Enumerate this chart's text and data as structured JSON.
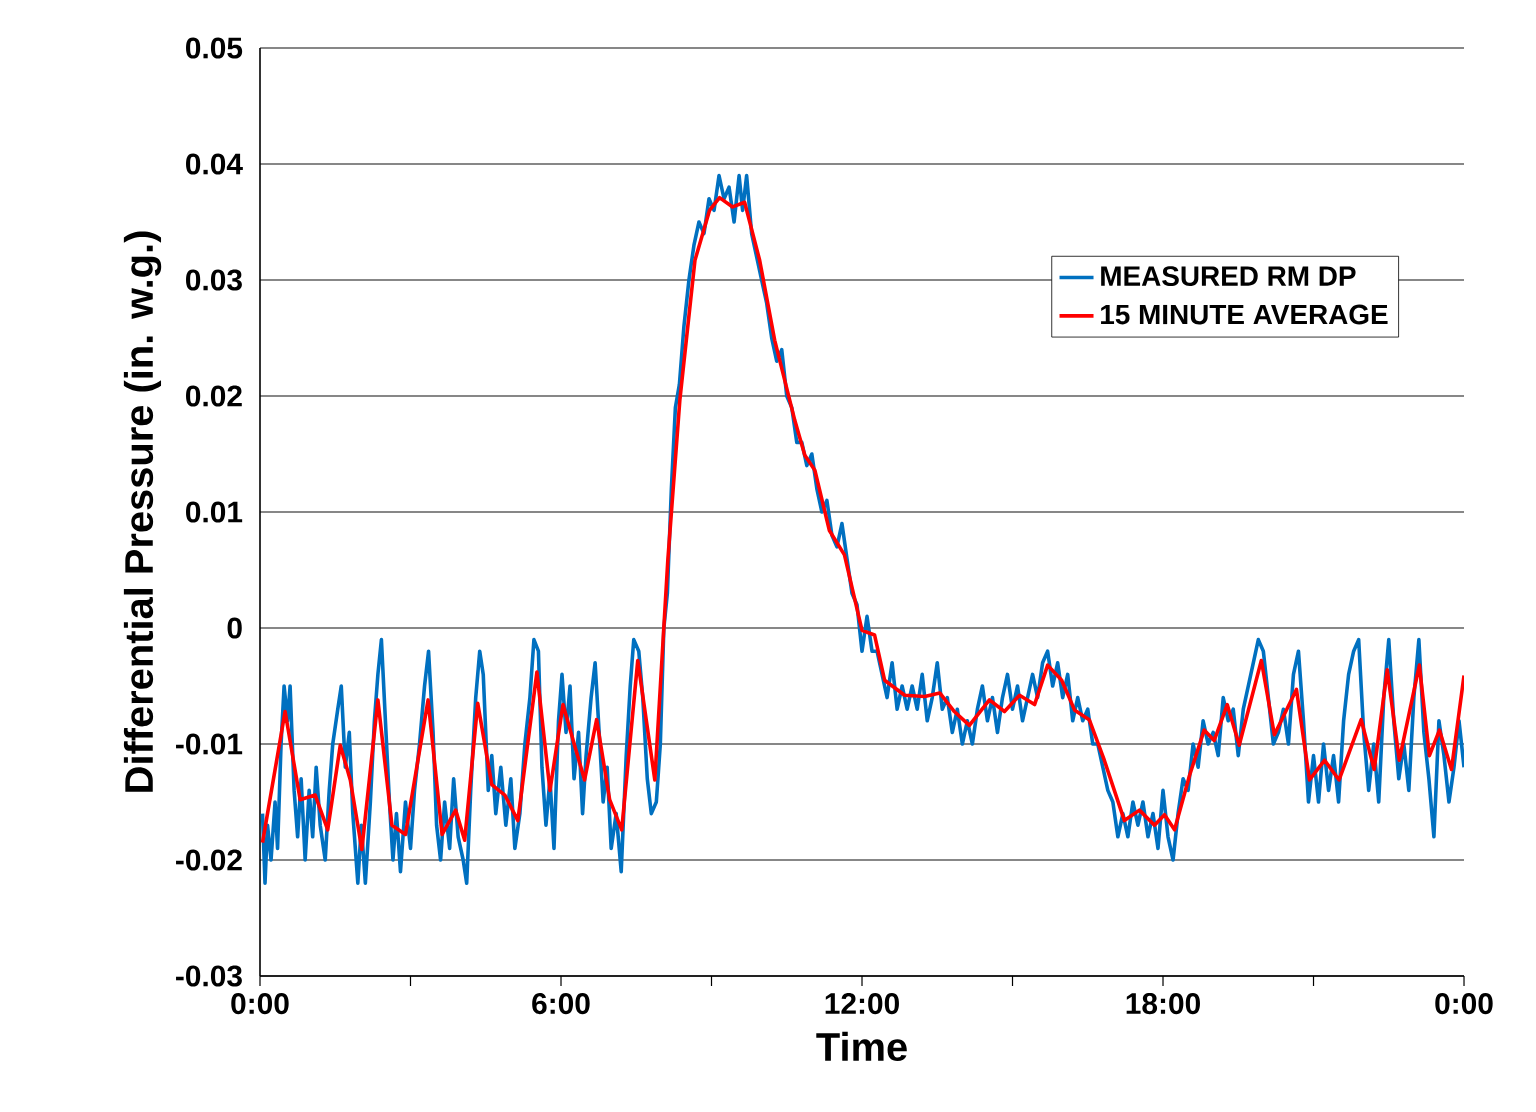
{
  "chart_data": {
    "type": "line",
    "xlabel": "Time",
    "ylabel": "Differential Pressure (in. w.g.)",
    "xlim": [
      0,
      24
    ],
    "xticks": [
      {
        "value": 0,
        "label": "0:00"
      },
      {
        "value": 3,
        "label": null
      },
      {
        "value": 6,
        "label": "6:00"
      },
      {
        "value": 9,
        "label": null
      },
      {
        "value": 12,
        "label": "12:00"
      },
      {
        "value": 15,
        "label": null
      },
      {
        "value": 18,
        "label": "18:00"
      },
      {
        "value": 21,
        "label": null
      },
      {
        "value": 24,
        "label": "0:00"
      }
    ],
    "ylim": [
      -0.03,
      0.05
    ],
    "yticks": [
      -0.03,
      -0.02,
      -0.01,
      0,
      0.01,
      0.02,
      0.03,
      0.04,
      0.05
    ],
    "grid": "y",
    "legend": "top right",
    "marker": "none",
    "line_style": "solid",
    "series": [
      {
        "name": "MEASURED RM DP",
        "color": "#0070c0",
        "x": [
          0.05,
          0.1,
          0.15,
          0.22,
          0.3,
          0.35,
          0.42,
          0.48,
          0.55,
          0.6,
          0.68,
          0.75,
          0.82,
          0.9,
          0.98,
          1.05,
          1.12,
          1.2,
          1.3,
          1.38,
          1.45,
          1.55,
          1.62,
          1.7,
          1.78,
          1.85,
          1.95,
          2.02,
          2.1,
          2.2,
          2.28,
          2.35,
          2.42,
          2.5,
          2.58,
          2.65,
          2.72,
          2.8,
          2.9,
          3.0,
          3.08,
          3.18,
          3.28,
          3.36,
          3.45,
          3.52,
          3.6,
          3.68,
          3.78,
          3.86,
          3.95,
          4.05,
          4.12,
          4.2,
          4.3,
          4.38,
          4.45,
          4.55,
          4.62,
          4.7,
          4.8,
          4.9,
          5.0,
          5.08,
          5.18,
          5.28,
          5.38,
          5.46,
          5.55,
          5.62,
          5.7,
          5.78,
          5.86,
          5.95,
          6.02,
          6.1,
          6.18,
          6.26,
          6.35,
          6.43,
          6.5,
          6.6,
          6.68,
          6.76,
          6.84,
          6.92,
          7.0,
          7.1,
          7.2,
          7.3,
          7.38,
          7.45,
          7.55,
          7.63,
          7.72,
          7.8,
          7.9,
          7.98,
          8.05,
          8.12,
          8.2,
          8.28,
          8.36,
          8.45,
          8.55,
          8.65,
          8.75,
          8.85,
          8.95,
          9.05,
          9.15,
          9.25,
          9.35,
          9.45,
          9.55,
          9.62,
          9.7,
          9.8,
          9.9,
          10.0,
          10.1,
          10.2,
          10.3,
          10.4,
          10.5,
          10.6,
          10.7,
          10.8,
          10.9,
          11.0,
          11.1,
          11.2,
          11.3,
          11.4,
          11.5,
          11.6,
          11.7,
          11.8,
          11.9,
          12.0,
          12.1,
          12.2,
          12.3,
          12.4,
          12.5,
          12.6,
          12.7,
          12.8,
          12.9,
          13.0,
          13.1,
          13.2,
          13.3,
          13.4,
          13.5,
          13.6,
          13.7,
          13.8,
          13.9,
          14.0,
          14.1,
          14.2,
          14.3,
          14.4,
          14.5,
          14.6,
          14.7,
          14.8,
          14.9,
          15.0,
          15.1,
          15.2,
          15.3,
          15.4,
          15.5,
          15.6,
          15.7,
          15.8,
          15.9,
          16.0,
          16.1,
          16.2,
          16.3,
          16.4,
          16.5,
          16.6,
          16.7,
          16.8,
          16.9,
          17.0,
          17.1,
          17.2,
          17.3,
          17.4,
          17.5,
          17.6,
          17.7,
          17.8,
          17.9,
          18.0,
          18.1,
          18.2,
          18.3,
          18.4,
          18.5,
          18.6,
          18.7,
          18.8,
          18.9,
          19.0,
          19.1,
          19.2,
          19.3,
          19.4,
          19.5,
          19.6,
          19.7,
          19.8,
          19.9,
          20.0,
          20.1,
          20.2,
          20.3,
          20.4,
          20.5,
          20.6,
          20.7,
          20.8,
          20.9,
          21.0,
          21.1,
          21.2,
          21.3,
          21.4,
          21.5,
          21.6,
          21.7,
          21.8,
          21.9,
          22.0,
          22.1,
          22.2,
          22.3,
          22.4,
          22.5,
          22.6,
          22.7,
          22.8,
          22.9,
          23.0,
          23.1,
          23.2,
          23.3,
          23.4,
          23.5,
          23.6,
          23.7,
          23.8,
          23.9,
          24.0
        ],
        "values": [
          -0.016,
          -0.022,
          -0.017,
          -0.02,
          -0.015,
          -0.019,
          -0.01,
          -0.005,
          -0.008,
          -0.005,
          -0.014,
          -0.018,
          -0.013,
          -0.02,
          -0.014,
          -0.018,
          -0.012,
          -0.017,
          -0.02,
          -0.014,
          -0.01,
          -0.007,
          -0.005,
          -0.012,
          -0.009,
          -0.016,
          -0.022,
          -0.017,
          -0.022,
          -0.015,
          -0.008,
          -0.004,
          -0.001,
          -0.008,
          -0.015,
          -0.02,
          -0.016,
          -0.021,
          -0.015,
          -0.019,
          -0.014,
          -0.01,
          -0.005,
          -0.002,
          -0.009,
          -0.017,
          -0.02,
          -0.015,
          -0.019,
          -0.013,
          -0.018,
          -0.02,
          -0.022,
          -0.014,
          -0.006,
          -0.002,
          -0.004,
          -0.014,
          -0.011,
          -0.016,
          -0.012,
          -0.017,
          -0.013,
          -0.019,
          -0.016,
          -0.01,
          -0.006,
          -0.001,
          -0.002,
          -0.012,
          -0.017,
          -0.013,
          -0.019,
          -0.008,
          -0.004,
          -0.009,
          -0.005,
          -0.013,
          -0.009,
          -0.016,
          -0.011,
          -0.006,
          -0.003,
          -0.009,
          -0.015,
          -0.012,
          -0.019,
          -0.016,
          -0.021,
          -0.011,
          -0.005,
          -0.001,
          -0.002,
          -0.006,
          -0.013,
          -0.016,
          -0.015,
          -0.01,
          0.0,
          0.003,
          0.012,
          0.019,
          0.021,
          0.026,
          0.03,
          0.033,
          0.035,
          0.034,
          0.037,
          0.036,
          0.039,
          0.037,
          0.038,
          0.035,
          0.039,
          0.036,
          0.039,
          0.034,
          0.032,
          0.03,
          0.028,
          0.025,
          0.023,
          0.024,
          0.02,
          0.019,
          0.016,
          0.016,
          0.014,
          0.015,
          0.012,
          0.01,
          0.011,
          0.008,
          0.007,
          0.009,
          0.006,
          0.003,
          0.002,
          -0.002,
          0.001,
          -0.002,
          -0.002,
          -0.004,
          -0.006,
          -0.003,
          -0.007,
          -0.005,
          -0.007,
          -0.005,
          -0.007,
          -0.004,
          -0.008,
          -0.006,
          -0.003,
          -0.007,
          -0.006,
          -0.009,
          -0.007,
          -0.01,
          -0.008,
          -0.01,
          -0.007,
          -0.005,
          -0.008,
          -0.006,
          -0.009,
          -0.006,
          -0.004,
          -0.007,
          -0.005,
          -0.008,
          -0.006,
          -0.004,
          -0.006,
          -0.003,
          -0.002,
          -0.005,
          -0.003,
          -0.006,
          -0.004,
          -0.008,
          -0.006,
          -0.008,
          -0.007,
          -0.01,
          -0.01,
          -0.012,
          -0.014,
          -0.015,
          -0.018,
          -0.016,
          -0.018,
          -0.015,
          -0.017,
          -0.015,
          -0.018,
          -0.016,
          -0.019,
          -0.014,
          -0.018,
          -0.02,
          -0.016,
          -0.013,
          -0.014,
          -0.01,
          -0.012,
          -0.008,
          -0.01,
          -0.009,
          -0.011,
          -0.006,
          -0.008,
          -0.007,
          -0.011,
          -0.007,
          -0.005,
          -0.003,
          -0.001,
          -0.002,
          -0.006,
          -0.01,
          -0.009,
          -0.007,
          -0.01,
          -0.004,
          -0.002,
          -0.008,
          -0.015,
          -0.011,
          -0.015,
          -0.01,
          -0.014,
          -0.011,
          -0.015,
          -0.008,
          -0.004,
          -0.002,
          -0.001,
          -0.009,
          -0.014,
          -0.01,
          -0.015,
          -0.006,
          -0.001,
          -0.008,
          -0.013,
          -0.01,
          -0.014,
          -0.006,
          -0.001,
          -0.009,
          -0.013,
          -0.018,
          -0.008,
          -0.011,
          -0.015,
          -0.012,
          -0.008,
          -0.012
        ]
      },
      {
        "name": "15 MINUTE AVERAGE",
        "color": "#ff0000",
        "x": [
          0.05,
          0.5,
          0.8,
          1.1,
          1.35,
          1.6,
          1.8,
          2.03,
          2.35,
          2.63,
          2.9,
          3.35,
          3.63,
          3.9,
          4.08,
          4.34,
          4.62,
          4.88,
          5.14,
          5.52,
          5.78,
          6.04,
          6.27,
          6.47,
          6.71,
          6.97,
          7.21,
          7.53,
          7.87,
          8.13,
          8.37,
          8.67,
          8.96,
          9.16,
          9.42,
          9.66,
          9.96,
          10.26,
          10.66,
          10.86,
          11.06,
          11.35,
          11.65,
          12.0,
          12.25,
          12.45,
          12.85,
          13.25,
          13.55,
          13.84,
          14.14,
          14.54,
          14.84,
          15.14,
          15.44,
          15.7,
          15.98,
          16.24,
          16.53,
          16.83,
          17.23,
          17.53,
          17.83,
          18.03,
          18.23,
          18.53,
          18.82,
          19.02,
          19.28,
          19.52,
          19.96,
          20.22,
          20.66,
          20.92,
          21.22,
          21.51,
          21.95,
          22.21,
          22.47,
          22.71,
          23.11,
          23.31,
          23.51,
          23.75,
          24.0
        ],
        "values": [
          -0.0185,
          -0.0072,
          -0.0148,
          -0.0144,
          -0.0174,
          -0.0101,
          -0.0131,
          -0.0191,
          -0.0062,
          -0.017,
          -0.0178,
          -0.0062,
          -0.0178,
          -0.0157,
          -0.0183,
          -0.0065,
          -0.0135,
          -0.0144,
          -0.0166,
          -0.0038,
          -0.014,
          -0.0066,
          -0.0101,
          -0.0131,
          -0.0079,
          -0.0148,
          -0.0174,
          -0.0028,
          -0.0131,
          0.0059,
          0.0197,
          0.0317,
          0.036,
          0.0371,
          0.0363,
          0.0367,
          0.0317,
          0.0248,
          0.0179,
          0.0149,
          0.0136,
          0.0084,
          0.0063,
          -0.0002,
          -0.0006,
          -0.0045,
          -0.0058,
          -0.0059,
          -0.0056,
          -0.0072,
          -0.0084,
          -0.0062,
          -0.0072,
          -0.0058,
          -0.0066,
          -0.0032,
          -0.0045,
          -0.0071,
          -0.0079,
          -0.0114,
          -0.0166,
          -0.0157,
          -0.017,
          -0.0161,
          -0.0174,
          -0.0127,
          -0.0088,
          -0.0097,
          -0.0066,
          -0.0101,
          -0.0028,
          -0.0092,
          -0.0053,
          -0.0131,
          -0.0114,
          -0.0131,
          -0.0079,
          -0.0122,
          -0.0036,
          -0.0114,
          -0.0032,
          -0.011,
          -0.0088,
          -0.0122,
          -0.0041
        ]
      }
    ]
  }
}
